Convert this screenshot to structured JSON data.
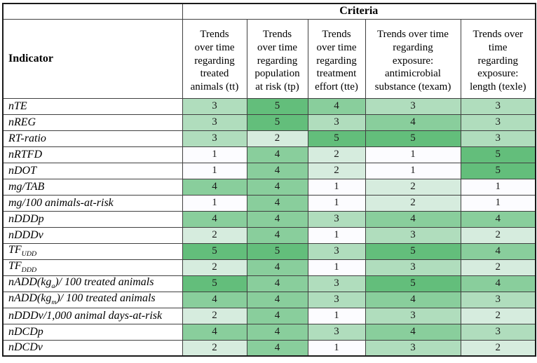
{
  "table": {
    "criteria_label": "Criteria",
    "indicator_label": "Indicator",
    "columns": [
      "Trends\nover time\nregarding\ntreated\nanimals (tt)",
      "Trends\nover time\nregarding\npopulation\nat risk (tp)",
      "Trends\nover time\nregarding\ntreatment\neffort (tte)",
      "Trends over time\nregarding\nexposure:\nantimicrobial\nsubstance (texam)",
      "Trends over\ntime\nregarding\nexposure:\nlength (texle)"
    ],
    "rows": [
      {
        "label": "nTE",
        "values": [
          3,
          5,
          4,
          3,
          3
        ]
      },
      {
        "label": "nREG",
        "values": [
          3,
          5,
          3,
          4,
          3
        ]
      },
      {
        "label": "RT-ratio",
        "values": [
          3,
          2,
          5,
          5,
          3
        ]
      },
      {
        "label": "nRTFD",
        "values": [
          1,
          4,
          2,
          1,
          5
        ]
      },
      {
        "label": "nDOT",
        "values": [
          1,
          4,
          2,
          1,
          5
        ]
      },
      {
        "label": "mg/TAB",
        "values": [
          4,
          4,
          1,
          2,
          1
        ]
      },
      {
        "label": "mg/100 animals-at-risk",
        "values": [
          1,
          4,
          1,
          2,
          1
        ]
      },
      {
        "label": "nDDDp",
        "values": [
          4,
          4,
          3,
          4,
          4
        ]
      },
      {
        "label": "nDDDv",
        "values": [
          2,
          4,
          1,
          3,
          2
        ]
      },
      {
        "label": "TF~UDD~",
        "values": [
          5,
          5,
          3,
          5,
          4
        ]
      },
      {
        "label": "TF~DDD~",
        "values": [
          2,
          4,
          1,
          3,
          2
        ]
      },
      {
        "label": "nADD(kg~a~)/ 100 treated animals",
        "values": [
          5,
          4,
          3,
          5,
          4
        ]
      },
      {
        "label": "nADD(kg~m~)/ 100 treated animals",
        "values": [
          4,
          4,
          3,
          4,
          3
        ]
      },
      {
        "label": "nDDDv/1,000 animal days-at-risk",
        "values": [
          2,
          4,
          1,
          3,
          2
        ]
      },
      {
        "label": "nDCDp",
        "values": [
          4,
          4,
          3,
          4,
          3
        ]
      },
      {
        "label": "nDCDv",
        "values": [
          2,
          4,
          1,
          3,
          2
        ]
      }
    ]
  },
  "colors": {
    "scale": {
      "1": "#FCFCFF",
      "2": "#D6ECDE",
      "3": "#B0DDBD",
      "4": "#89CE9C",
      "5": "#63BE7B"
    },
    "border_outer": "#1a1a1a",
    "border_inner": "#404040"
  },
  "chart_data": {
    "type": "heatmap",
    "title": "",
    "x_categories": [
      "Trends over time regarding treated animals (tt)",
      "Trends over time regarding population at risk (tp)",
      "Trends over time regarding treatment effort (tte)",
      "Trends over time regarding exposure: antimicrobial substance (texam)",
      "Trends over time regarding exposure: length (texle)"
    ],
    "y_categories": [
      "nTE",
      "nREG",
      "RT-ratio",
      "nRTFD",
      "nDOT",
      "mg/TAB",
      "mg/100 animals-at-risk",
      "nDDDp",
      "nDDDv",
      "TF_UDD",
      "TF_DDD",
      "nADD(kg_a)/ 100 treated animals",
      "nADD(kg_m)/ 100 treated animals",
      "nDDDv/1,000 animal days-at-risk",
      "nDCDp",
      "nDCDv"
    ],
    "values": [
      [
        3,
        5,
        4,
        3,
        3
      ],
      [
        3,
        5,
        3,
        4,
        3
      ],
      [
        3,
        2,
        5,
        5,
        3
      ],
      [
        1,
        4,
        2,
        1,
        5
      ],
      [
        1,
        4,
        2,
        1,
        5
      ],
      [
        4,
        4,
        1,
        2,
        1
      ],
      [
        1,
        4,
        1,
        2,
        1
      ],
      [
        4,
        4,
        3,
        4,
        4
      ],
      [
        2,
        4,
        1,
        3,
        2
      ],
      [
        5,
        5,
        3,
        5,
        4
      ],
      [
        2,
        4,
        1,
        3,
        2
      ],
      [
        5,
        4,
        3,
        5,
        4
      ],
      [
        4,
        4,
        3,
        4,
        3
      ],
      [
        2,
        4,
        1,
        3,
        2
      ],
      [
        4,
        4,
        3,
        4,
        3
      ],
      [
        2,
        4,
        1,
        3,
        2
      ]
    ],
    "value_range": [
      1,
      5
    ],
    "colormap": "white (1) to green (5), Excel-style color scale",
    "legend": "none",
    "grid": "full table borders"
  }
}
